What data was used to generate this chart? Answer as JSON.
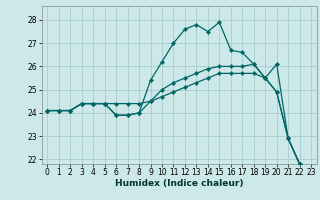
{
  "xlabel": "Humidex (Indice chaleur)",
  "bg_color": "#cce8e8",
  "grid_color": "#aacccc",
  "line_color": "#006666",
  "xlim": [
    -0.5,
    23.5
  ],
  "ylim": [
    21.8,
    28.6
  ],
  "yticks": [
    22,
    23,
    24,
    25,
    26,
    27,
    28
  ],
  "xticks": [
    0,
    1,
    2,
    3,
    4,
    5,
    6,
    7,
    8,
    9,
    10,
    11,
    12,
    13,
    14,
    15,
    16,
    17,
    18,
    19,
    20,
    21,
    22,
    23
  ],
  "series": [
    {
      "x": [
        0,
        1,
        2,
        3,
        4,
        5,
        6,
        7,
        8,
        9,
        10,
        11,
        12,
        13,
        14,
        15,
        16,
        17,
        18,
        19,
        20,
        21,
        22
      ],
      "y": [
        24.1,
        24.1,
        24.1,
        24.4,
        24.4,
        24.4,
        23.9,
        23.9,
        24.0,
        25.4,
        26.2,
        27.0,
        27.6,
        27.8,
        27.5,
        27.9,
        26.7,
        26.6,
        26.1,
        25.5,
        26.1,
        22.9,
        21.8
      ]
    },
    {
      "x": [
        0,
        1,
        2,
        3,
        4,
        5,
        6,
        7,
        8,
        9,
        10,
        11,
        12,
        13,
        14,
        15,
        16,
        17,
        18,
        19,
        20,
        21,
        22
      ],
      "y": [
        24.1,
        24.1,
        24.1,
        24.4,
        24.4,
        24.4,
        23.9,
        23.9,
        24.0,
        24.5,
        25.0,
        25.3,
        25.5,
        25.7,
        25.9,
        26.0,
        26.0,
        26.0,
        26.1,
        25.5,
        24.9,
        22.9,
        21.8
      ]
    },
    {
      "x": [
        0,
        1,
        2,
        3,
        4,
        5,
        6,
        7,
        8,
        9,
        10,
        11,
        12,
        13,
        14,
        15,
        16,
        17,
        18,
        19,
        20,
        21,
        22
      ],
      "y": [
        24.1,
        24.1,
        24.1,
        24.4,
        24.4,
        24.4,
        24.4,
        24.4,
        24.4,
        24.5,
        24.7,
        24.9,
        25.1,
        25.3,
        25.5,
        25.7,
        25.7,
        25.7,
        25.7,
        25.5,
        24.9,
        22.9,
        21.8
      ]
    }
  ],
  "tick_fontsize": 5.5,
  "xlabel_fontsize": 6.5,
  "marker_size": 2.2,
  "linewidth": 0.9
}
